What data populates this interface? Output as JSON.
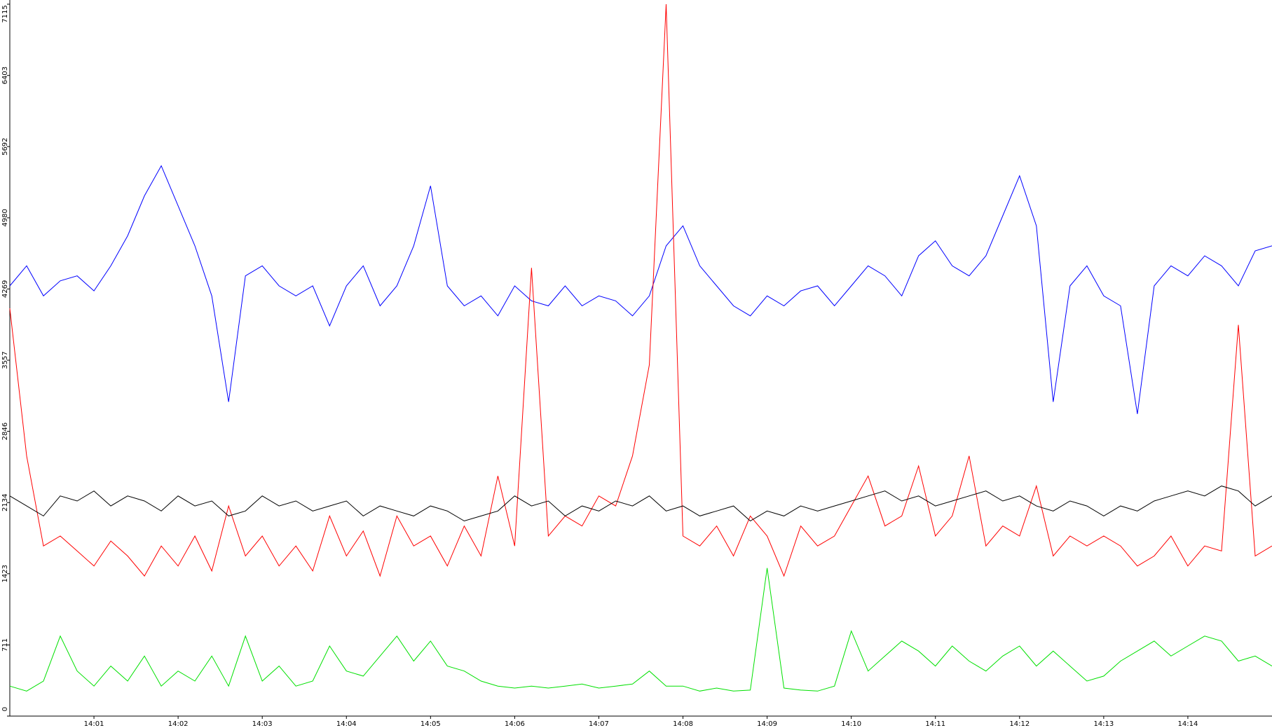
{
  "chart_data": {
    "type": "line",
    "x": [
      0,
      0.2,
      0.4,
      0.6,
      0.8,
      1,
      1.2,
      1.4,
      1.6,
      1.8,
      2,
      2.2,
      2.4,
      2.6,
      2.8,
      3,
      3.2,
      3.4,
      3.6,
      3.8,
      4,
      4.2,
      4.4,
      4.6,
      4.8,
      5,
      5.2,
      5.4,
      5.6,
      5.8,
      6,
      6.2,
      6.4,
      6.6,
      6.8,
      7,
      7.2,
      7.4,
      7.6,
      7.8,
      8,
      8.2,
      8.4,
      8.6,
      8.8,
      9,
      9.2,
      9.4,
      9.6,
      9.8,
      10,
      10.2,
      10.4,
      10.6,
      10.8,
      11,
      11.2,
      11.4,
      11.6,
      11.8,
      12,
      12.2,
      12.4,
      12.6,
      12.8,
      13,
      13.2,
      13.4,
      13.6,
      13.8,
      14,
      14.2,
      14.4,
      14.6,
      14.8,
      15
    ],
    "xlim": [
      0,
      15
    ],
    "xticks": [
      {
        "value": 1,
        "label": "14:01"
      },
      {
        "value": 2,
        "label": "14:02"
      },
      {
        "value": 3,
        "label": "14:03"
      },
      {
        "value": 4,
        "label": "14:04"
      },
      {
        "value": 5,
        "label": "14:05"
      },
      {
        "value": 6,
        "label": "14:06"
      },
      {
        "value": 7,
        "label": "14:07"
      },
      {
        "value": 8,
        "label": "14:08"
      },
      {
        "value": 9,
        "label": "14:09"
      },
      {
        "value": 10,
        "label": "14:10"
      },
      {
        "value": 11,
        "label": "14:11"
      },
      {
        "value": 12,
        "label": "14:12"
      },
      {
        "value": 13,
        "label": "14:13"
      },
      {
        "value": 14,
        "label": "14:14"
      }
    ],
    "ylim": [
      0,
      7115
    ],
    "yticks": [
      0,
      711,
      1423,
      2134,
      2846,
      3557,
      4269,
      4980,
      5692,
      6403,
      7115
    ],
    "grid": false,
    "series": [
      {
        "color": "#0000ff",
        "values": [
          4300,
          4500,
          4200,
          4350,
          4400,
          4250,
          4500,
          4800,
          5200,
          5500,
          5100,
          4700,
          4200,
          3140,
          4400,
          4500,
          4300,
          4200,
          4300,
          3900,
          4300,
          4500,
          4100,
          4300,
          4700,
          5300,
          4300,
          4100,
          4200,
          4000,
          4300,
          4150,
          4100,
          4300,
          4100,
          4200,
          4150,
          4000,
          4200,
          4700,
          4900,
          4500,
          4300,
          4100,
          4000,
          4200,
          4100,
          4250,
          4300,
          4100,
          4300,
          4500,
          4400,
          4200,
          4600,
          4750,
          4500,
          4400,
          4600,
          5000,
          5400,
          4900,
          3140,
          4300,
          4500,
          4200,
          4100,
          3020,
          4300,
          4500,
          4400,
          4600,
          4500,
          4300,
          4650,
          4700
        ]
      },
      {
        "color": "#ff0000",
        "values": [
          4075,
          2600,
          1700,
          1800,
          1650,
          1500,
          1750,
          1600,
          1400,
          1700,
          1500,
          1800,
          1450,
          2100,
          1600,
          1800,
          1500,
          1700,
          1450,
          2000,
          1600,
          1850,
          1400,
          2000,
          1700,
          1800,
          1500,
          1900,
          1600,
          2400,
          1700,
          4480,
          1800,
          2000,
          1900,
          2200,
          2100,
          2600,
          3510,
          7115,
          1800,
          1700,
          1900,
          1600,
          2000,
          1800,
          1400,
          1900,
          1700,
          1800,
          2100,
          2400,
          1900,
          2000,
          2500,
          1800,
          2000,
          2600,
          1700,
          1900,
          1800,
          2300,
          1600,
          1800,
          1700,
          1800,
          1700,
          1500,
          1600,
          1800,
          1500,
          1700,
          1650,
          3910,
          1600,
          1700
        ]
      },
      {
        "color": "#000000",
        "values": [
          2200,
          2100,
          2000,
          2200,
          2150,
          2250,
          2100,
          2200,
          2150,
          2050,
          2200,
          2100,
          2150,
          2000,
          2050,
          2200,
          2100,
          2150,
          2050,
          2100,
          2150,
          2000,
          2100,
          2050,
          2000,
          2100,
          2050,
          1950,
          2000,
          2050,
          2200,
          2100,
          2150,
          2000,
          2100,
          2050,
          2150,
          2100,
          2200,
          2050,
          2100,
          2000,
          2050,
          2100,
          1950,
          2050,
          2000,
          2100,
          2050,
          2100,
          2150,
          2200,
          2250,
          2150,
          2200,
          2100,
          2150,
          2200,
          2250,
          2150,
          2200,
          2100,
          2050,
          2150,
          2100,
          2000,
          2100,
          2050,
          2150,
          2200,
          2250,
          2200,
          2300,
          2250,
          2100,
          2200
        ]
      },
      {
        "color": "#00e000",
        "values": [
          300,
          250,
          350,
          800,
          450,
          300,
          500,
          350,
          600,
          300,
          450,
          350,
          600,
          300,
          800,
          350,
          500,
          300,
          350,
          700,
          450,
          400,
          600,
          800,
          550,
          750,
          500,
          450,
          350,
          300,
          280,
          300,
          280,
          300,
          320,
          280,
          300,
          320,
          450,
          300,
          300,
          250,
          280,
          250,
          260,
          1480,
          280,
          260,
          250,
          300,
          850,
          450,
          600,
          750,
          650,
          500,
          700,
          550,
          450,
          600,
          700,
          500,
          650,
          500,
          350,
          400,
          550,
          650,
          750,
          600,
          700,
          800,
          750,
          550,
          600,
          500
        ]
      }
    ]
  }
}
